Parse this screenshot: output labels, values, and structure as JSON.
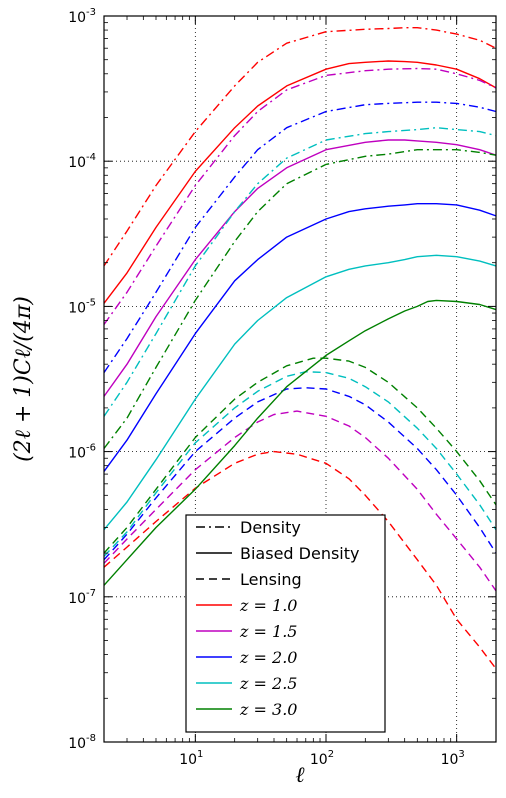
{
  "chart_data": {
    "type": "line",
    "xscale": "log",
    "yscale": "log",
    "xlim": [
      2,
      2000
    ],
    "ylim": [
      1e-08,
      0.001
    ],
    "xlabel": "ℓ",
    "ylabel": "(2ℓ + 1)Cℓ/(4π)",
    "grid": true,
    "xticks": [
      {
        "value": 10,
        "base": "10",
        "exp": "1"
      },
      {
        "value": 100,
        "base": "10",
        "exp": "2"
      },
      {
        "value": 1000,
        "base": "10",
        "exp": "3"
      }
    ],
    "yticks": [
      {
        "value": 1e-08,
        "base": "10",
        "exp": "-8"
      },
      {
        "value": 1e-07,
        "base": "10",
        "exp": "-7"
      },
      {
        "value": 1e-06,
        "base": "10",
        "exp": "-6"
      },
      {
        "value": 1e-05,
        "base": "10",
        "exp": "-5"
      },
      {
        "value": 0.0001,
        "base": "10",
        "exp": "-4"
      },
      {
        "value": 0.001,
        "base": "10",
        "exp": "-3"
      }
    ],
    "legend": {
      "placement": "lower-center",
      "style_entries": [
        {
          "label": "Density",
          "dash": "dashdot"
        },
        {
          "label": "Biased Density",
          "dash": "solid"
        },
        {
          "label": "Lensing",
          "dash": "dashed"
        }
      ],
      "z_entries": [
        {
          "label": "z = 1.0",
          "color": "#ff0000"
        },
        {
          "label": "z = 1.5",
          "color": "#bf00bf"
        },
        {
          "label": "z = 2.0",
          "color": "#0000ff"
        },
        {
          "label": "z = 2.5",
          "color": "#00bfbf"
        },
        {
          "label": "z = 3.0",
          "color": "#008000"
        }
      ]
    },
    "series": [
      {
        "z": "1.0",
        "kind": "Density",
        "dash": "dashdot",
        "color": "#ff0000",
        "x": [
          2,
          3,
          5,
          10,
          20,
          30,
          50,
          100,
          200,
          300,
          400,
          500,
          700,
          1000,
          1500,
          2000
        ],
        "y": [
          1.9e-05,
          3.3e-05,
          6.8e-05,
          0.00016,
          0.00033,
          0.00048,
          0.00065,
          0.00078,
          0.00081,
          0.00082,
          0.00083,
          0.00083,
          0.0008,
          0.00075,
          0.00068,
          0.0006
        ]
      },
      {
        "z": "1.0",
        "kind": "Biased Density",
        "dash": "solid",
        "color": "#ff0000",
        "x": [
          2,
          3,
          5,
          10,
          20,
          30,
          50,
          100,
          150,
          200,
          300,
          400,
          500,
          700,
          1000,
          1500,
          2000
        ],
        "y": [
          1.05e-05,
          1.7e-05,
          3.5e-05,
          8.5e-05,
          0.00017,
          0.00024,
          0.00033,
          0.00043,
          0.00047,
          0.00048,
          0.00049,
          0.000485,
          0.00048,
          0.00046,
          0.00043,
          0.00037,
          0.00032
        ]
      },
      {
        "z": "1.0",
        "kind": "Lensing",
        "dash": "dashed",
        "color": "#ff0000",
        "x": [
          2,
          3,
          5,
          10,
          20,
          30,
          40,
          60,
          100,
          150,
          200,
          300,
          500,
          700,
          1000,
          1500,
          2000
        ],
        "y": [
          1.6e-07,
          2.2e-07,
          3.3e-07,
          5.6e-07,
          8.3e-07,
          9.6e-07,
          1e-06,
          9.6e-07,
          8.3e-07,
          6.5e-07,
          5e-07,
          3.3e-07,
          1.8e-07,
          1.2e-07,
          7e-08,
          4.5e-08,
          3.2e-08
        ]
      },
      {
        "z": "1.5",
        "kind": "Density",
        "dash": "dashdot",
        "color": "#bf00bf",
        "x": [
          2,
          3,
          5,
          10,
          20,
          30,
          50,
          100,
          200,
          300,
          500,
          700,
          1000,
          1500,
          2000
        ],
        "y": [
          7.5e-06,
          1.25e-05,
          2.6e-05,
          6.8e-05,
          0.00015,
          0.00022,
          0.00031,
          0.00039,
          0.00042,
          0.00043,
          0.000435,
          0.00043,
          0.0004,
          0.00036,
          0.00032
        ]
      },
      {
        "z": "1.5",
        "kind": "Biased Density",
        "dash": "solid",
        "color": "#bf00bf",
        "x": [
          2,
          3,
          5,
          10,
          20,
          30,
          50,
          100,
          200,
          300,
          400,
          500,
          700,
          1000,
          1500,
          2000
        ],
        "y": [
          2.4e-06,
          4e-06,
          8.5e-06,
          2.1e-05,
          4.5e-05,
          6.5e-05,
          9e-05,
          0.00012,
          0.000135,
          0.00014,
          0.00014,
          0.000138,
          0.000135,
          0.00013,
          0.00012,
          0.00011
        ]
      },
      {
        "z": "1.5",
        "kind": "Lensing",
        "dash": "dashed",
        "color": "#bf00bf",
        "x": [
          2,
          3,
          5,
          10,
          20,
          30,
          40,
          60,
          100,
          150,
          200,
          300,
          500,
          700,
          1000,
          1500,
          2000
        ],
        "y": [
          1.7e-07,
          2.5e-07,
          4e-07,
          7.5e-07,
          1.25e-06,
          1.6e-06,
          1.8e-06,
          1.9e-06,
          1.75e-06,
          1.5e-06,
          1.25e-06,
          9e-07,
          5.5e-07,
          3.7e-07,
          2.5e-07,
          1.6e-07,
          1.1e-07
        ]
      },
      {
        "z": "2.0",
        "kind": "Density",
        "dash": "dashdot",
        "color": "#0000ff",
        "x": [
          2,
          3,
          5,
          10,
          20,
          30,
          50,
          100,
          200,
          300,
          500,
          700,
          1000,
          1500,
          2000
        ],
        "y": [
          3.5e-06,
          6e-06,
          1.25e-05,
          3.5e-05,
          7.8e-05,
          0.00012,
          0.00017,
          0.00022,
          0.000245,
          0.00025,
          0.000255,
          0.000255,
          0.00025,
          0.000235,
          0.00022
        ]
      },
      {
        "z": "2.0",
        "kind": "Biased Density",
        "dash": "solid",
        "color": "#0000ff",
        "x": [
          2,
          3,
          5,
          10,
          20,
          30,
          50,
          100,
          150,
          200,
          300,
          400,
          500,
          700,
          1000,
          1500,
          2000
        ],
        "y": [
          7.3e-07,
          1.2e-06,
          2.5e-06,
          6.5e-06,
          1.5e-05,
          2.1e-05,
          3e-05,
          4e-05,
          4.5e-05,
          4.7e-05,
          4.9e-05,
          5e-05,
          5.1e-05,
          5.1e-05,
          5e-05,
          4.6e-05,
          4.2e-05
        ]
      },
      {
        "z": "2.0",
        "kind": "Lensing",
        "dash": "dashed",
        "color": "#0000ff",
        "x": [
          2,
          3,
          5,
          10,
          20,
          30,
          50,
          70,
          100,
          150,
          200,
          300,
          500,
          700,
          1000,
          1500,
          2000
        ],
        "y": [
          1.8e-07,
          2.7e-07,
          4.8e-07,
          1e-06,
          1.7e-06,
          2.2e-06,
          2.7e-06,
          2.75e-06,
          2.7e-06,
          2.4e-06,
          2.1e-06,
          1.6e-06,
          1.05e-06,
          7.5e-07,
          5e-07,
          3e-07,
          2e-07
        ]
      },
      {
        "z": "2.5",
        "kind": "Density",
        "dash": "dashdot",
        "color": "#00bfbf",
        "x": [
          2,
          3,
          5,
          10,
          20,
          30,
          50,
          100,
          200,
          300,
          500,
          700,
          1000,
          1500,
          2000
        ],
        "y": [
          1.75e-06,
          3e-06,
          6.5e-06,
          1.9e-05,
          4.5e-05,
          7e-05,
          0.000105,
          0.00014,
          0.000155,
          0.00016,
          0.000165,
          0.00017,
          0.000165,
          0.00016,
          0.00015
        ]
      },
      {
        "z": "2.5",
        "kind": "Biased Density",
        "dash": "solid",
        "color": "#00bfbf",
        "x": [
          2,
          3,
          5,
          10,
          20,
          30,
          50,
          100,
          150,
          200,
          300,
          400,
          500,
          700,
          1000,
          1500,
          2000
        ],
        "y": [
          2.9e-07,
          4.5e-07,
          8.8e-07,
          2.3e-06,
          5.5e-06,
          8e-06,
          1.15e-05,
          1.6e-05,
          1.8e-05,
          1.9e-05,
          2e-05,
          2.1e-05,
          2.2e-05,
          2.25e-05,
          2.2e-05,
          2.05e-05,
          1.9e-05
        ]
      },
      {
        "z": "2.5",
        "kind": "Lensing",
        "dash": "dashed",
        "color": "#00bfbf",
        "x": [
          2,
          3,
          5,
          10,
          20,
          30,
          50,
          70,
          100,
          150,
          200,
          300,
          500,
          700,
          1000,
          1500,
          2000
        ],
        "y": [
          1.9e-07,
          2.8e-07,
          5.2e-07,
          1.15e-06,
          2e-06,
          2.6e-06,
          3.3e-06,
          3.55e-06,
          3.5e-06,
          3.2e-06,
          2.8e-06,
          2.2e-06,
          1.45e-06,
          1.05e-06,
          7e-07,
          4.3e-07,
          2.9e-07
        ]
      },
      {
        "z": "3.0",
        "kind": "Density",
        "dash": "dashdot",
        "color": "#008000",
        "x": [
          2,
          3,
          5,
          10,
          20,
          30,
          50,
          100,
          200,
          300,
          500,
          700,
          1000,
          1500,
          2000
        ],
        "y": [
          1.05e-06,
          1.7e-06,
          3.8e-06,
          1.1e-05,
          2.8e-05,
          4.5e-05,
          7e-05,
          9.5e-05,
          0.000108,
          0.000112,
          0.00012,
          0.00012,
          0.00012,
          0.000115,
          0.00011
        ]
      },
      {
        "z": "3.0",
        "kind": "Biased Density",
        "dash": "solid",
        "color": "#008000",
        "x": [
          2,
          3,
          5,
          10,
          20,
          30,
          50,
          100,
          150,
          200,
          300,
          400,
          500,
          600,
          700,
          1000,
          1500,
          2000
        ],
        "y": [
          1.2e-07,
          1.8e-07,
          3e-07,
          5.5e-07,
          1.1e-06,
          1.7e-06,
          2.8e-06,
          4.6e-06,
          5.8e-06,
          6.8e-06,
          8.2e-06,
          9.3e-06,
          1e-05,
          1.08e-05,
          1.1e-05,
          1.08e-05,
          1.03e-05,
          9.5e-06
        ]
      },
      {
        "z": "3.0",
        "kind": "Lensing",
        "dash": "dashed",
        "color": "#008000",
        "x": [
          2,
          3,
          5,
          10,
          20,
          30,
          50,
          80,
          100,
          150,
          200,
          300,
          500,
          700,
          1000,
          1500,
          2000
        ],
        "y": [
          2e-07,
          3e-07,
          5.5e-07,
          1.25e-06,
          2.3e-06,
          3e-06,
          3.9e-06,
          4.4e-06,
          4.4e-06,
          4.2e-06,
          3.8e-06,
          3e-06,
          2e-06,
          1.45e-06,
          1e-06,
          6.3e-07,
          4.3e-07
        ]
      }
    ]
  }
}
